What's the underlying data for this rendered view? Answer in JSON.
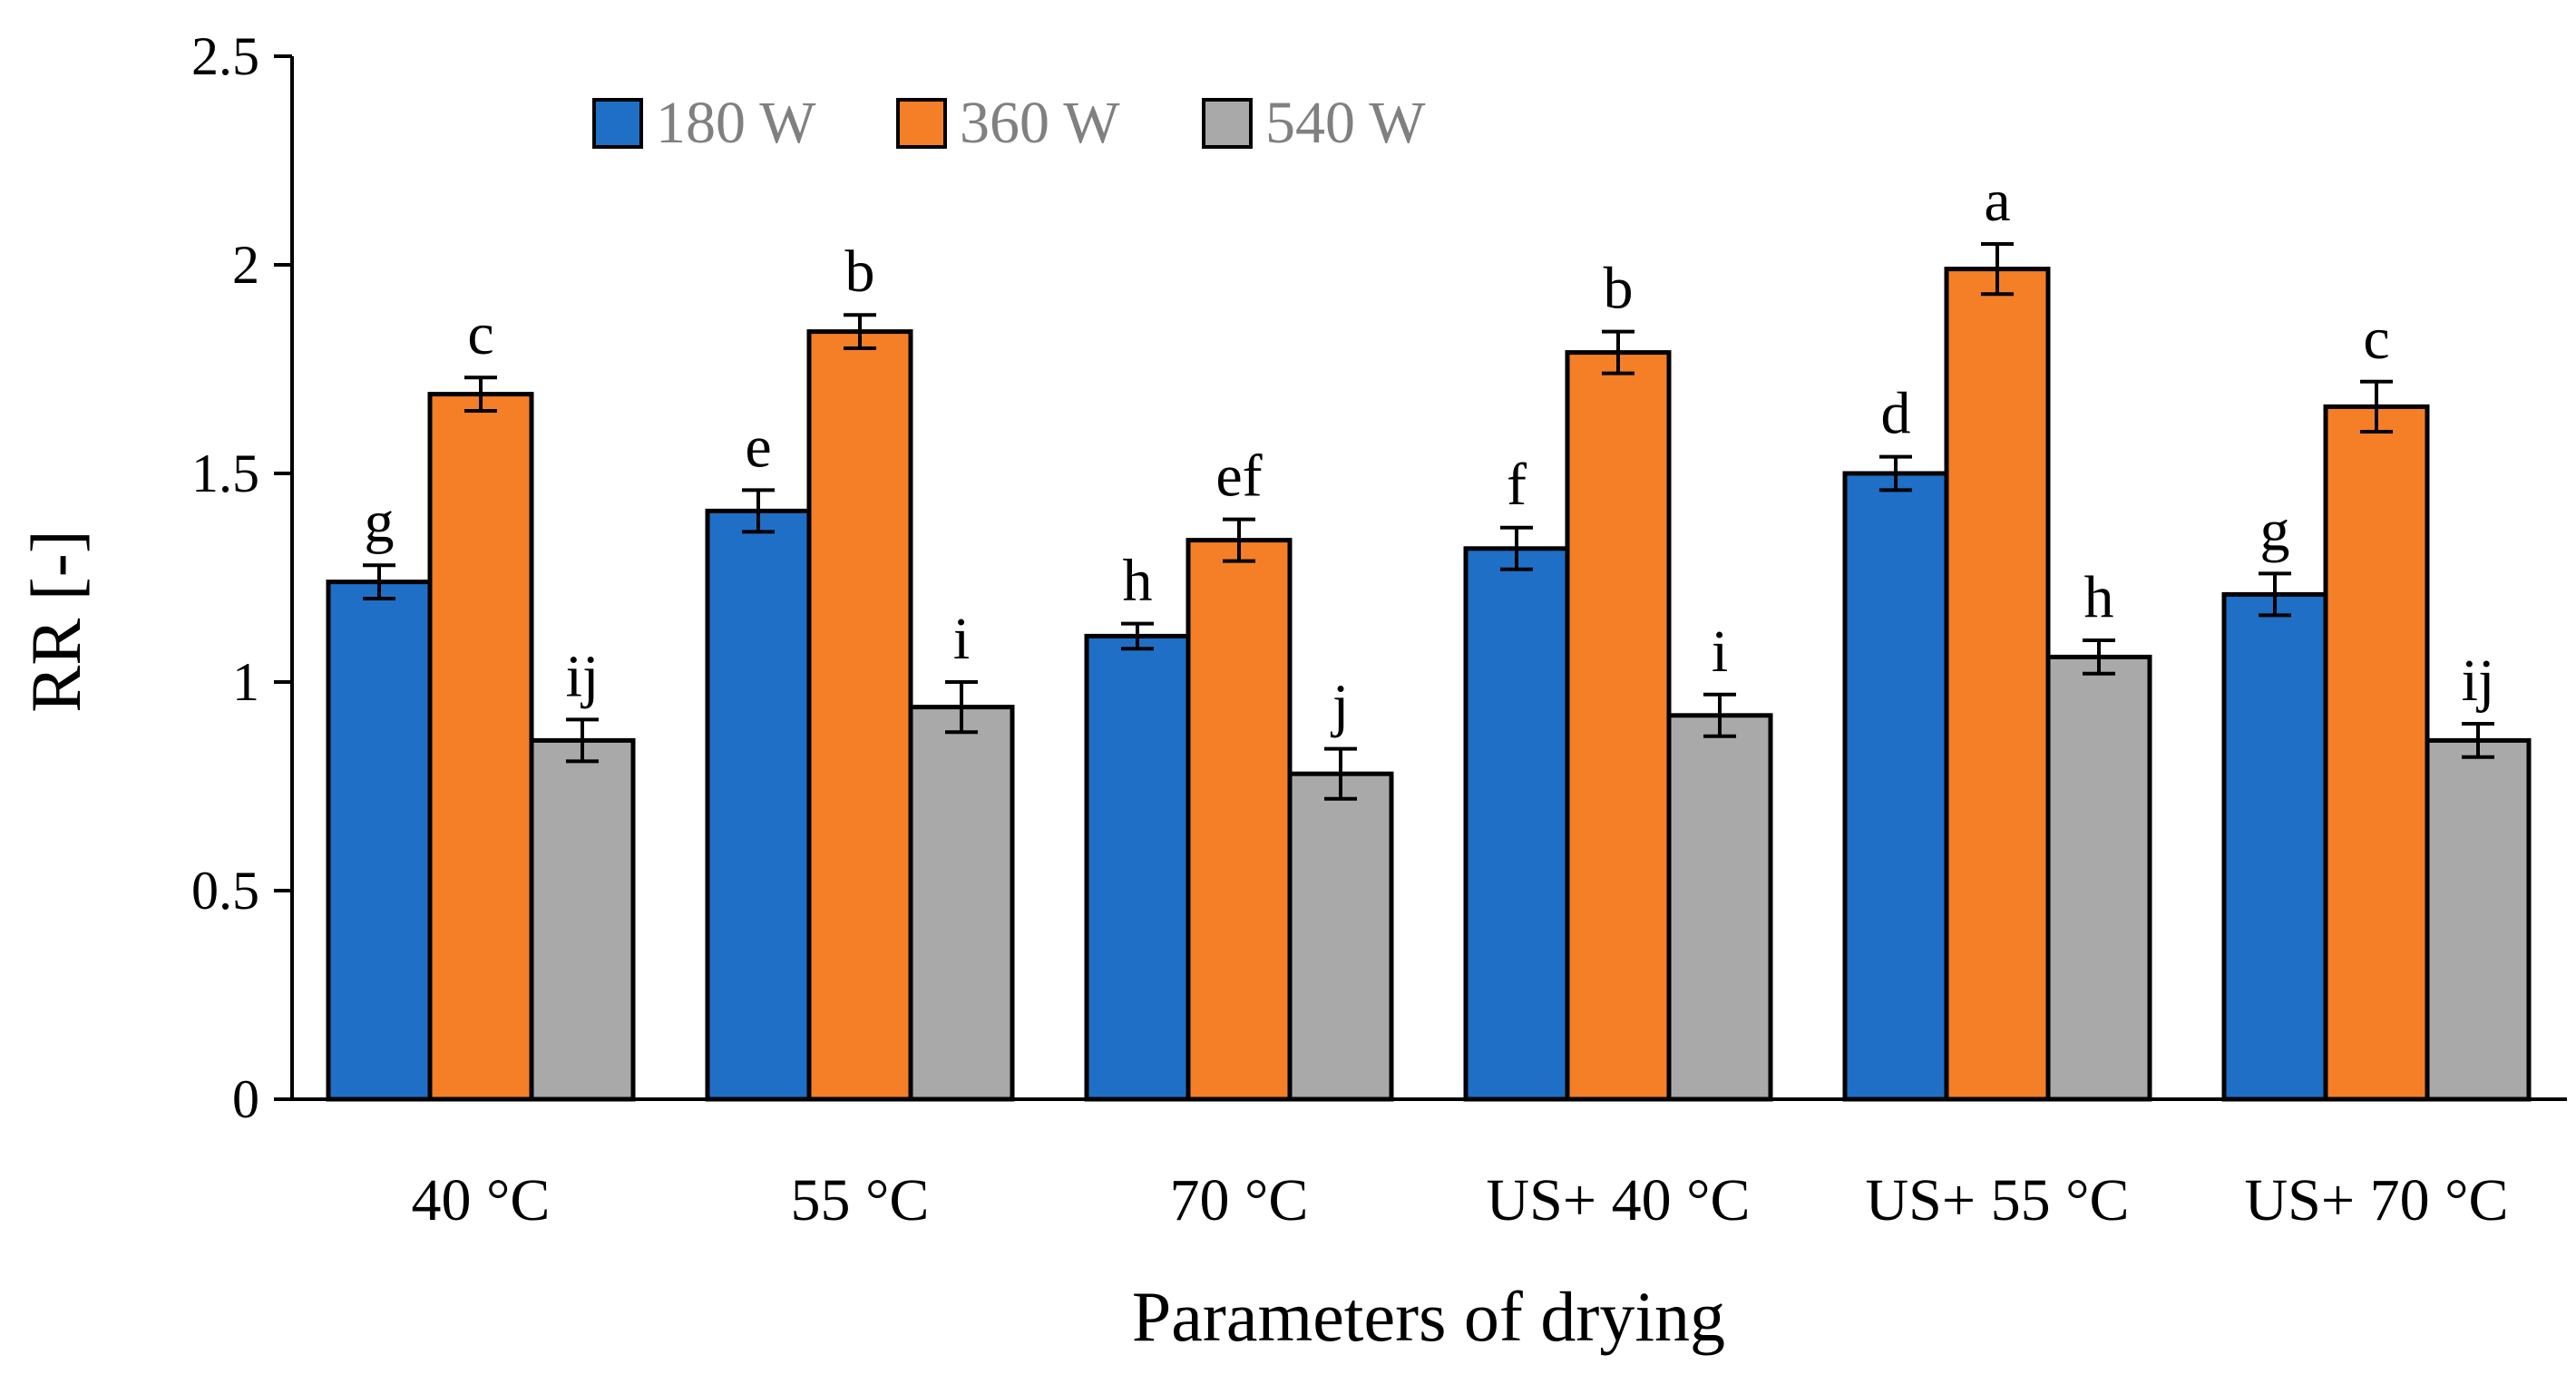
{
  "chart_data": {
    "type": "bar",
    "title": "",
    "xlabel": "Parameters of drying",
    "ylabel": "RR [-]",
    "ylim": [
      0,
      2.5
    ],
    "yticks": [
      "0",
      "0.5",
      "1",
      "1.5",
      "2",
      "2.5"
    ],
    "categories": [
      "40 °C",
      "55 °C",
      "70 °C",
      "US+ 40 °C",
      "US+ 55 °C",
      "US+ 70 °C"
    ],
    "legend_position": "top",
    "series": [
      {
        "name": "180 W",
        "color": "#1f6fc6",
        "values": [
          1.24,
          1.41,
          1.11,
          1.32,
          1.5,
          1.21
        ],
        "errors": [
          0.04,
          0.05,
          0.03,
          0.05,
          0.04,
          0.05
        ],
        "labels": [
          "g",
          "e",
          "h",
          "f",
          "d",
          "g"
        ]
      },
      {
        "name": "360 W",
        "color": "#f57f27",
        "values": [
          1.69,
          1.84,
          1.34,
          1.79,
          1.99,
          1.66
        ],
        "errors": [
          0.04,
          0.04,
          0.05,
          0.05,
          0.06,
          0.06
        ],
        "labels": [
          "c",
          "b",
          "ef",
          "b",
          "a",
          "c"
        ]
      },
      {
        "name": "540 W",
        "color": "#a9a9a9",
        "values": [
          0.86,
          0.94,
          0.78,
          0.92,
          1.06,
          0.86
        ],
        "errors": [
          0.05,
          0.06,
          0.06,
          0.05,
          0.04,
          0.04
        ],
        "labels": [
          "ij",
          "i",
          "j",
          "i",
          "h",
          "ij"
        ]
      }
    ]
  }
}
